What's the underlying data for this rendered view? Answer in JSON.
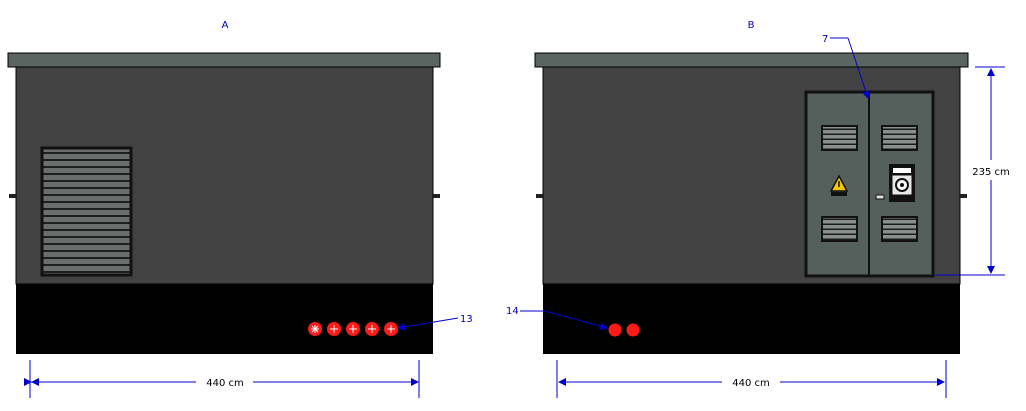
{
  "views": {
    "left": {
      "label": "A"
    },
    "right": {
      "label": "B"
    }
  },
  "dimensions": {
    "width_left": "440 cm",
    "width_right": "440 cm",
    "height_right": "235 cm"
  },
  "callouts": {
    "door": "7",
    "cable_entries_left": "13",
    "cable_entries_right": "14"
  },
  "colors": {
    "body": "#424242",
    "roof": "#5a6460",
    "base": "#000000",
    "door": "#55605c",
    "accent_red": "#ff1a1a",
    "annotation": "#0000cc",
    "dimension_line": "#0000cc"
  },
  "icons": {
    "warning": "warning-triangle-icon",
    "meter": "electric-meter-icon"
  }
}
